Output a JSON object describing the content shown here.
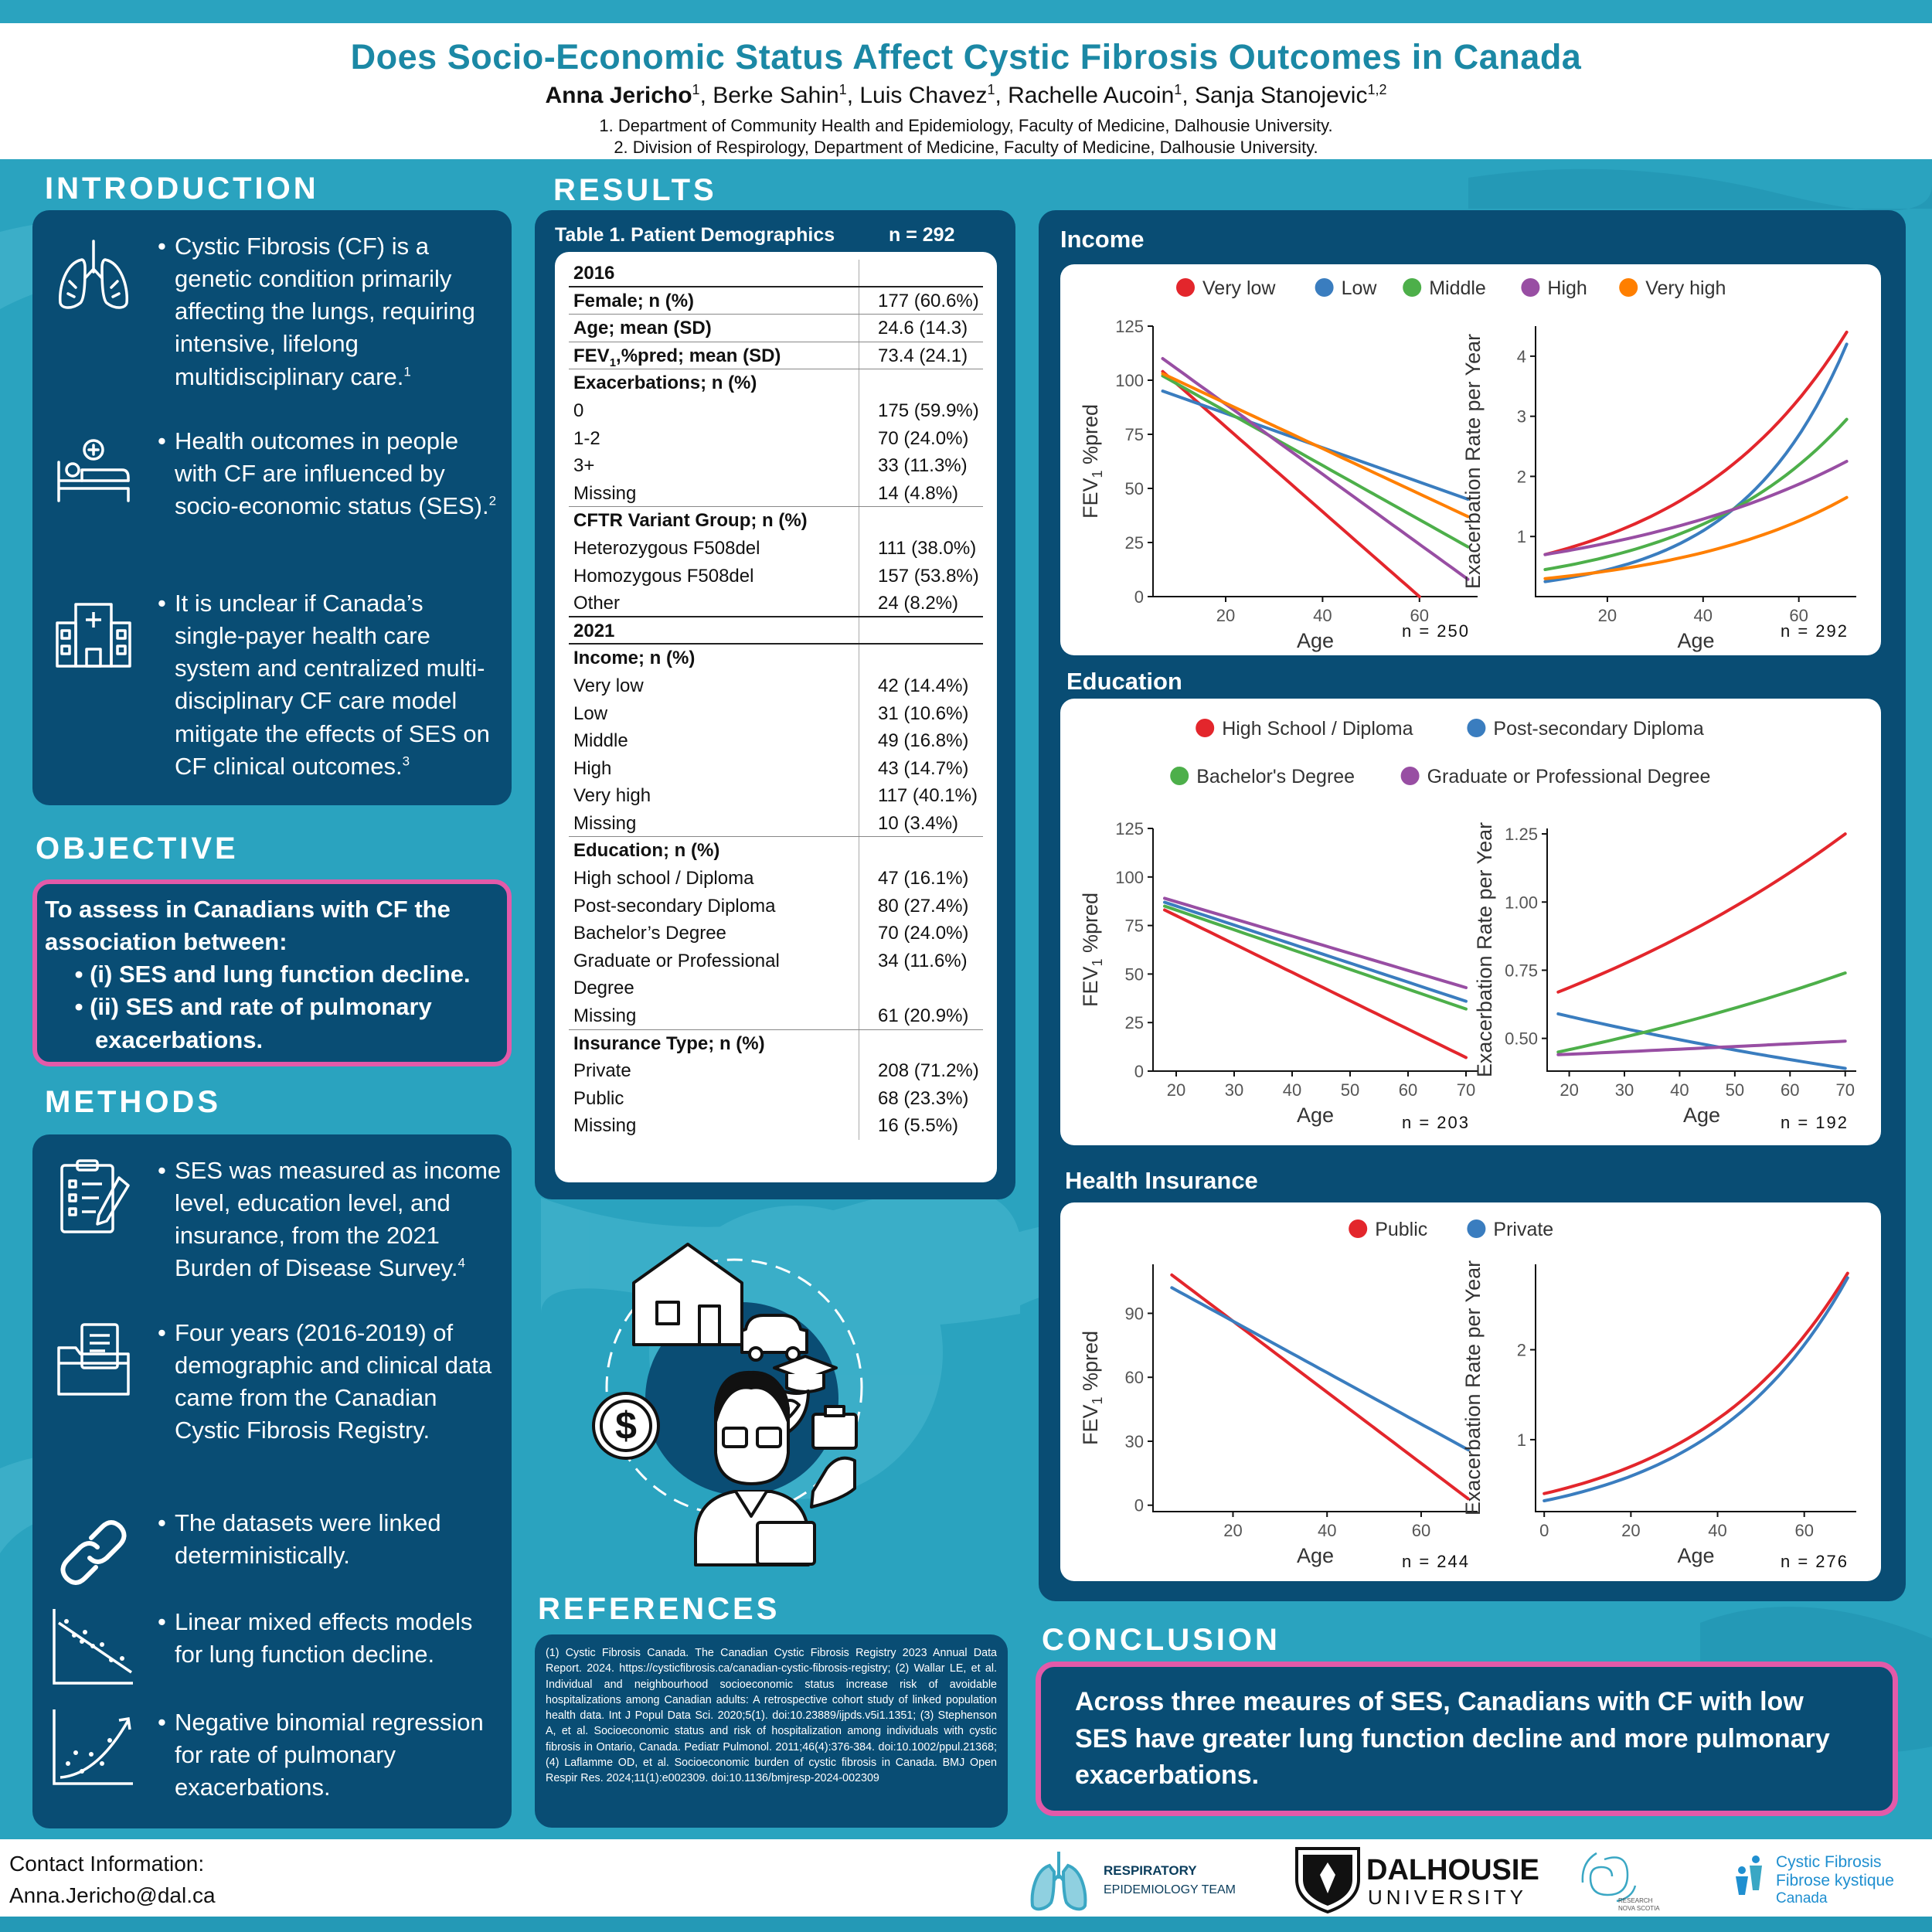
{
  "header": {
    "title": "Does Socio-Economic Status Affect Cystic Fibrosis Outcomes in Canada",
    "authors": [
      {
        "name": "Anna Jericho",
        "sup": "1",
        "bold": true
      },
      {
        "name": "Berke Sahin",
        "sup": "1"
      },
      {
        "name": "Luis Chavez",
        "sup": "1"
      },
      {
        "name": "Rachelle Aucoin",
        "sup": "1"
      },
      {
        "name": "Sanja Stanojevic",
        "sup": "1,2"
      }
    ],
    "affil1": "1. Department of Community Health and Epidemiology, Faculty of Medicine, Dalhousie University.",
    "affil2": "2. Division of Respirology, Department of Medicine, Faculty of Medicine, Dalhousie University."
  },
  "intro": {
    "title": "INTRODUCTION",
    "items": [
      {
        "text": "Cystic Fibrosis (CF) is a genetic condition primarily affecting  the lungs, requiring intensive, lifelong multidisciplinary care.",
        "sup": "1",
        "icon": "lungs-icon"
      },
      {
        "text": "Health outcomes in people with CF are influenced by socio-economic status (SES).",
        "sup": "2",
        "icon": "patient-bed-icon"
      },
      {
        "text": "It is unclear if Canada’s single-payer health care system and centralized multi-disciplinary CF care model mitigate the effects of SES on CF clinical outcomes.",
        "sup": "3",
        "icon": "hospital-icon"
      }
    ]
  },
  "objective": {
    "title": "OBJECTIVE",
    "lead": "To assess in Canadians with CF the association between:",
    "items": [
      "(i) SES and lung function decline.",
      "(ii) SES and rate of pulmonary",
      "exacerbations."
    ]
  },
  "methods": {
    "title": "METHODS",
    "items": [
      {
        "text": "SES was measured as income level, education level, and insurance, from the 2021 Burden of Disease Survey.",
        "sup": "4",
        "icon": "clipboard-icon"
      },
      {
        "text": "Four years (2016-2019) of demographic and clinical data came from the Canadian Cystic Fibrosis Registry.",
        "sup": "",
        "icon": "folder-icon"
      },
      {
        "text": "The datasets were linked deterministically.",
        "sup": "",
        "icon": "link-icon"
      },
      {
        "text": "Linear mixed effects models for lung function decline.",
        "sup": "",
        "icon": "decline-plot-icon"
      },
      {
        "text": "Negative binomial regression for rate of pulmonary exacerbations.",
        "sup": "",
        "icon": "growth-plot-icon"
      }
    ]
  },
  "results": {
    "title": "RESULTS",
    "table_title": "Table 1. Patient Demographics",
    "table_n": "n = 292",
    "rows": [
      {
        "label": "2016",
        "value": "",
        "style": "b line"
      },
      {
        "label": "Female; n (%)",
        "value": "177 (60.6%)",
        "style": "b thin"
      },
      {
        "label": "Age; mean (SD)",
        "value": "24.6 (14.3)",
        "style": "b thin"
      },
      {
        "label": "FEV1%pred; mean (SD)",
        "value": "73.4 (24.1)",
        "style": "b thin"
      },
      {
        "label": "Exacerbations; n (%)",
        "value": "",
        "style": "b"
      },
      {
        "label": "0",
        "value": "175 (59.9%)",
        "style": ""
      },
      {
        "label": "1-2",
        "value": "70 (24.0%)",
        "style": ""
      },
      {
        "label": "3+",
        "value": "33 (11.3%)",
        "style": ""
      },
      {
        "label": "Missing",
        "value": "14 (4.8%)",
        "style": "thin"
      },
      {
        "label": "CFTR Variant Group; n (%)",
        "value": "",
        "style": "b"
      },
      {
        "label": "Heterozygous F508del",
        "value": "111 (38.0%)",
        "style": ""
      },
      {
        "label": "Homozygous F508del",
        "value": "157 (53.8%)",
        "style": ""
      },
      {
        "label": "Other",
        "value": "24 (8.2%)",
        "style": "line"
      },
      {
        "label": "2021",
        "value": "",
        "style": "b line"
      },
      {
        "label": "Income; n (%)",
        "value": "",
        "style": "b"
      },
      {
        "label": "Very low",
        "value": "42 (14.4%)",
        "style": ""
      },
      {
        "label": "Low",
        "value": "31 (10.6%)",
        "style": ""
      },
      {
        "label": "Middle",
        "value": "49 (16.8%)",
        "style": ""
      },
      {
        "label": "High",
        "value": "43 (14.7%)",
        "style": ""
      },
      {
        "label": "Very high",
        "value": "117 (40.1%)",
        "style": ""
      },
      {
        "label": "Missing",
        "value": "10 (3.4%)",
        "style": "thin"
      },
      {
        "label": "Education; n (%)",
        "value": "",
        "style": "b"
      },
      {
        "label": "High school / Diploma",
        "value": "47 (16.1%)",
        "style": ""
      },
      {
        "label": "Post-secondary Diploma",
        "value": "80 (27.4%)",
        "style": ""
      },
      {
        "label": "Bachelor’s Degree",
        "value": "70 (24.0%)",
        "style": ""
      },
      {
        "label": "Graduate or Professional",
        "value": "34 (11.6%)",
        "style": ""
      },
      {
        "label": "Degree",
        "value": "",
        "style": ""
      },
      {
        "label": "Missing",
        "value": "61 (20.9%)",
        "style": "thin"
      },
      {
        "label": "Insurance Type; n (%)",
        "value": "",
        "style": "b"
      },
      {
        "label": "Private",
        "value": "208 (71.2%)",
        "style": ""
      },
      {
        "label": "Public",
        "value": "68 (23.3%)",
        "style": ""
      },
      {
        "label": "Missing",
        "value": "16 (5.5%)",
        "style": ""
      }
    ]
  },
  "references": {
    "title": "REFERENCES",
    "text": "(1) Cystic Fibrosis Canada. The Canadian Cystic Fibrosis Registry 2023 Annual Data Report. 2024. https://cysticfibrosis.ca/canadian-cystic-fibrosis-registry; (2) Wallar LE, et al. Individual and neighbourhood socioeconomic status increase risk of avoidable hospitalizations among Canadian adults: A retrospective cohort study of linked population health data. Int J Popul Data Sci. 2020;5(1). doi:10.23889/ijpds.v5i1.1351; (3) Stephenson A, et al. Socioeconomic status and risk of hospitalization among individuals with cystic fibrosis in Ontario, Canada. Pediatr Pulmonol. 2011;46(4):376-384. doi:10.1002/ppul.21368; (4) Laflamme OD, et al. Socioeconomic burden of cystic fibrosis in Canada. BMJ Open Respir Res. 2024;11(1):e002309. doi:10.1136/bmjresp-2024-002309"
  },
  "conclusion": {
    "title": "CONCLUSION",
    "text": "Across three meaures of SES, Canadians with CF with low SES have greater lung function decline and more pulmonary exacerbations."
  },
  "footer": {
    "contact_label": "Contact Information:",
    "email": "Anna.Jericho@dal.ca",
    "logo1_line1": "RESPIRATORY",
    "logo1_line2": "EPIDEMIOLOGY TEAM",
    "logo2_line1": "DALHOUSIE",
    "logo2_line2": "UNIVERSITY",
    "logo3_line1": "RESEARCH",
    "logo3_line2": "NOVA SCOTIA",
    "logo4_line1": "Cystic Fibrosis",
    "logo4_line2": "Fibrose kystique",
    "logo4_line3": "Canada"
  },
  "chart_data": [
    {
      "section": "Income",
      "type": "line",
      "legend": [
        "Very low",
        "Low",
        "Middle",
        "High",
        "Very high"
      ],
      "colors": [
        "#e3262c",
        "#3a7dbf",
        "#4daf4a",
        "#984ea3",
        "#ff7f00"
      ],
      "panels": [
        {
          "xlabel": "Age",
          "ylabel": "FEV1 %pred",
          "n": "n = 250",
          "xlim": [
            5,
            72
          ],
          "ylim": [
            0,
            125
          ],
          "xticks": [
            20,
            40,
            60
          ],
          "yticks": [
            0,
            25,
            50,
            75,
            100,
            125
          ],
          "series": [
            {
              "name": "Very low",
              "x": [
                7,
                60
              ],
              "y": [
                104,
                0
              ]
            },
            {
              "name": "Low",
              "x": [
                7,
                70
              ],
              "y": [
                95,
                45
              ]
            },
            {
              "name": "Middle",
              "x": [
                7,
                70
              ],
              "y": [
                102,
                23
              ]
            },
            {
              "name": "High",
              "x": [
                7,
                70
              ],
              "y": [
                110,
                8
              ]
            },
            {
              "name": "Very high",
              "x": [
                7,
                70
              ],
              "y": [
                103,
                37
              ]
            }
          ]
        },
        {
          "xlabel": "Age",
          "ylabel": "Exacerbation Rate per Year",
          "n": "n = 292",
          "xlim": [
            5,
            72
          ],
          "ylim": [
            0,
            4.5
          ],
          "xticks": [
            20,
            40,
            60
          ],
          "yticks": [
            1,
            2,
            3,
            4
          ],
          "curve": "exp",
          "series": [
            {
              "name": "Very low",
              "x": [
                7,
                70
              ],
              "y": [
                0.7,
                4.4
              ]
            },
            {
              "name": "Low",
              "x": [
                7,
                70
              ],
              "y": [
                0.25,
                4.2
              ]
            },
            {
              "name": "Middle",
              "x": [
                7,
                70
              ],
              "y": [
                0.45,
                2.95
              ]
            },
            {
              "name": "High",
              "x": [
                7,
                70
              ],
              "y": [
                0.7,
                2.25
              ]
            },
            {
              "name": "Very high",
              "x": [
                7,
                70
              ],
              "y": [
                0.3,
                1.65
              ]
            }
          ]
        }
      ]
    },
    {
      "section": "Education",
      "type": "line",
      "legend": [
        "High School / Diploma",
        "Post-secondary Diploma",
        "Bachelor's Degree",
        "Graduate or Professional Degree"
      ],
      "colors": [
        "#e3262c",
        "#3a7dbf",
        "#4daf4a",
        "#984ea3"
      ],
      "panels": [
        {
          "xlabel": "Age",
          "ylabel": "FEV1 %pred",
          "n": "n = 203",
          "xlim": [
            16,
            72
          ],
          "ylim": [
            0,
            125
          ],
          "xticks": [
            20,
            30,
            40,
            50,
            60,
            70
          ],
          "yticks": [
            0,
            25,
            50,
            75,
            100,
            125
          ],
          "series": [
            {
              "name": "High School / Diploma",
              "x": [
                18,
                70
              ],
              "y": [
                83,
                7
              ]
            },
            {
              "name": "Post-secondary Diploma",
              "x": [
                18,
                70
              ],
              "y": [
                87,
                36
              ]
            },
            {
              "name": "Bachelor's Degree",
              "x": [
                18,
                70
              ],
              "y": [
                85,
                32
              ]
            },
            {
              "name": "Graduate or Professional Degree",
              "x": [
                18,
                70
              ],
              "y": [
                89,
                43
              ]
            }
          ]
        },
        {
          "xlabel": "Age",
          "ylabel": "Exacerbation Rate per Year",
          "n": "n = 192",
          "xlim": [
            16,
            72
          ],
          "ylim": [
            0.38,
            1.27
          ],
          "xticks": [
            20,
            30,
            40,
            50,
            60,
            70
          ],
          "yticks": [
            0.5,
            0.75,
            1.0,
            1.25
          ],
          "curve": "exp",
          "series": [
            {
              "name": "High School / Diploma",
              "x": [
                18,
                70
              ],
              "y": [
                0.67,
                1.25
              ]
            },
            {
              "name": "Post-secondary Diploma",
              "x": [
                18,
                70
              ],
              "y": [
                0.59,
                0.39
              ]
            },
            {
              "name": "Bachelor's Degree",
              "x": [
                18,
                70
              ],
              "y": [
                0.45,
                0.74
              ]
            },
            {
              "name": "Graduate or Professional Degree",
              "x": [
                18,
                70
              ],
              "y": [
                0.44,
                0.49
              ]
            }
          ]
        }
      ]
    },
    {
      "section": "Health Insurance",
      "type": "line",
      "legend": [
        "Public",
        "Private"
      ],
      "colors": [
        "#e3262c",
        "#3a7dbf"
      ],
      "panels": [
        {
          "xlabel": "Age",
          "ylabel": "FEV1 %pred",
          "n": "n = 244",
          "xlim": [
            3,
            72
          ],
          "ylim": [
            -3,
            113
          ],
          "xticks": [
            20,
            40,
            60
          ],
          "yticks": [
            0,
            30,
            60,
            90
          ],
          "series": [
            {
              "name": "Public",
              "x": [
                7,
                70
              ],
              "y": [
                108,
                3
              ]
            },
            {
              "name": "Private",
              "x": [
                7,
                70
              ],
              "y": [
                102,
                26
              ]
            }
          ]
        },
        {
          "xlabel": "Age",
          "ylabel": "Exacerbation Rate per Year",
          "n": "n = 276",
          "xlim": [
            -2,
            72
          ],
          "ylim": [
            0.2,
            2.95
          ],
          "xticks": [
            0,
            20,
            40,
            60
          ],
          "yticks": [
            1,
            2
          ],
          "curve": "exp",
          "series": [
            {
              "name": "Public",
              "x": [
                0,
                70
              ],
              "y": [
                0.4,
                2.85
              ]
            },
            {
              "name": "Private",
              "x": [
                0,
                70
              ],
              "y": [
                0.32,
                2.8
              ]
            }
          ]
        }
      ]
    }
  ]
}
